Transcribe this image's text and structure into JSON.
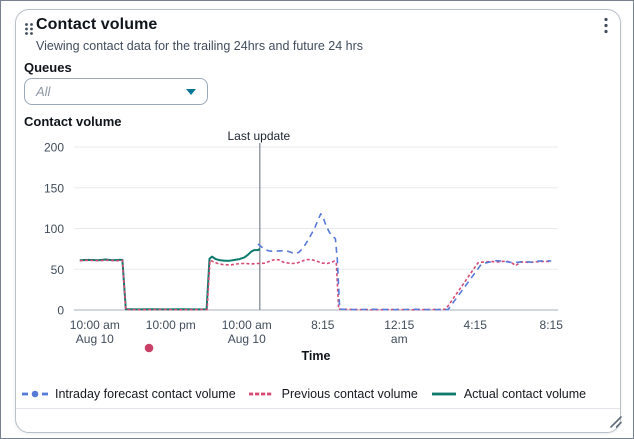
{
  "header": {
    "title": "Contact volume",
    "subtitle": "Viewing contact data for the trailing 24hrs and future 24 hrs"
  },
  "icons": {
    "drag_handle": "drag-handle",
    "menu": "kebab-vertical-dots",
    "select_caret": "caret-down-filled",
    "resize": "resize-diagonal-handle"
  },
  "queues": {
    "label": "Queues",
    "selected": "All"
  },
  "colors": {
    "forecast_blue": "#587ad8",
    "previous_pink": "#d64a74",
    "actual_teal": "#0d7a6d",
    "annotation_dot": "#c94067",
    "select_caret": "#0b7596"
  },
  "chart_data": {
    "type": "line",
    "title": "Contact volume",
    "xlabel": "Time",
    "ylabel": "",
    "ylim": [
      0,
      200
    ],
    "grid": "horizontal",
    "legend_position": "bottom",
    "y_ticks": [
      0,
      50,
      100,
      150,
      200
    ],
    "x_ticks": [
      {
        "pos": 4.3,
        "line1": "10:00 am",
        "line2": "Aug 10"
      },
      {
        "pos": 20.0,
        "line1": "10:00 pm",
        "line2": ""
      },
      {
        "pos": 35.7,
        "line1": "10:00 am",
        "line2": "Aug 10"
      },
      {
        "pos": 51.4,
        "line1": "8:15",
        "line2": ""
      },
      {
        "pos": 67.2,
        "line1": "12:15",
        "line2": "am"
      },
      {
        "pos": 82.9,
        "line1": "4:15",
        "line2": ""
      },
      {
        "pos": 98.6,
        "line1": "8:15",
        "line2": ""
      }
    ],
    "annotations": {
      "vline": {
        "label": "Last update",
        "pos": 38.4
      },
      "below_axis_dot": {
        "pos": 15.5,
        "color": "#c94067"
      }
    },
    "series": [
      {
        "name": "Intraday forecast contact volume",
        "color": "#587ad8",
        "style": "dashed",
        "points": [
          [
            38.0,
            81
          ],
          [
            38.7,
            77.5
          ],
          [
            39.5,
            74
          ],
          [
            40.3,
            72.5
          ],
          [
            41.3,
            72
          ],
          [
            42.5,
            72.5
          ],
          [
            43.7,
            73
          ],
          [
            44.7,
            71
          ],
          [
            45.7,
            69
          ],
          [
            46.5,
            71
          ],
          [
            47.3,
            76
          ],
          [
            48.3,
            85
          ],
          [
            49.1,
            93.5
          ],
          [
            49.9,
            103
          ],
          [
            50.6,
            113
          ],
          [
            51.0,
            118
          ],
          [
            51.5,
            113
          ],
          [
            52.1,
            103
          ],
          [
            52.8,
            95
          ],
          [
            53.5,
            90
          ],
          [
            54.0,
            87.5
          ],
          [
            54.4,
            62
          ],
          [
            54.9,
            1
          ],
          [
            58,
            0.5
          ],
          [
            62,
            0.8
          ],
          [
            66,
            0.4
          ],
          [
            70,
            0.8
          ],
          [
            74,
            0.4
          ],
          [
            77.3,
            0.6
          ],
          [
            84.2,
            56.5
          ],
          [
            85.6,
            58.5
          ],
          [
            87.1,
            60.5
          ],
          [
            88.6,
            60
          ],
          [
            90.1,
            58.5
          ],
          [
            91.6,
            58.5
          ],
          [
            93.1,
            59.5
          ],
          [
            94.6,
            58.5
          ],
          [
            96.1,
            60
          ],
          [
            97.6,
            60.5
          ],
          [
            98.6,
            60
          ]
        ]
      },
      {
        "name": "Previous contact volume",
        "color": "#d64a74",
        "style": "dense-dashed",
        "points": [
          [
            1.2,
            60.5
          ],
          [
            3,
            61
          ],
          [
            5,
            60.5
          ],
          [
            7,
            61
          ],
          [
            9,
            60.5
          ],
          [
            10.0,
            61
          ],
          [
            10.7,
            0.5
          ],
          [
            14,
            0.3
          ],
          [
            18,
            0.6
          ],
          [
            22,
            0.3
          ],
          [
            26,
            0.6
          ],
          [
            27.5,
            0.5
          ],
          [
            28.1,
            61
          ],
          [
            28.9,
            59
          ],
          [
            29.7,
            57
          ],
          [
            30.6,
            56
          ],
          [
            31.6,
            55.5
          ],
          [
            32.6,
            55.5
          ],
          [
            33.6,
            56.5
          ],
          [
            34.6,
            57
          ],
          [
            35.6,
            57
          ],
          [
            36.6,
            56.5
          ],
          [
            37.6,
            57
          ],
          [
            38.4,
            57
          ],
          [
            39.6,
            57.5
          ],
          [
            40.6,
            60.5
          ],
          [
            41.6,
            62
          ],
          [
            42.4,
            61.5
          ],
          [
            43.3,
            58.5
          ],
          [
            44.3,
            57.5
          ],
          [
            45.3,
            57
          ],
          [
            46.3,
            58
          ],
          [
            47.3,
            60.5
          ],
          [
            48.3,
            62
          ],
          [
            49.3,
            61.5
          ],
          [
            50.3,
            59.5
          ],
          [
            51.3,
            57.5
          ],
          [
            52.3,
            57
          ],
          [
            53.2,
            58.5
          ],
          [
            53.8,
            60
          ],
          [
            54.2,
            58
          ],
          [
            54.7,
            1
          ],
          [
            58,
            0.6
          ],
          [
            62,
            0.3
          ],
          [
            66,
            0.6
          ],
          [
            70,
            0.3
          ],
          [
            74,
            0.6
          ],
          [
            76.8,
            0.8
          ],
          [
            83.5,
            58
          ],
          [
            84.8,
            59
          ],
          [
            86.3,
            59.5
          ],
          [
            87.8,
            59
          ],
          [
            89.3,
            60
          ],
          [
            90.4,
            58
          ],
          [
            91.3,
            54.5
          ],
          [
            92.3,
            59
          ],
          [
            93.8,
            58.5
          ],
          [
            95.3,
            59
          ],
          [
            96.8,
            59.5
          ],
          [
            98.2,
            59.5
          ],
          [
            98.6,
            60
          ]
        ]
      },
      {
        "name": "Actual contact volume",
        "color": "#0d7a6d",
        "style": "solid",
        "points": [
          [
            1.2,
            61
          ],
          [
            3,
            61.5
          ],
          [
            5,
            61
          ],
          [
            6.5,
            62
          ],
          [
            8,
            61
          ],
          [
            9.3,
            61.5
          ],
          [
            10.0,
            61.5
          ],
          [
            10.7,
            1
          ],
          [
            13,
            0.7
          ],
          [
            16,
            1
          ],
          [
            19,
            0.7
          ],
          [
            22,
            1
          ],
          [
            25,
            0.7
          ],
          [
            27.4,
            1
          ],
          [
            28.0,
            63
          ],
          [
            28.5,
            65.5
          ],
          [
            29.3,
            62.5
          ],
          [
            30.2,
            61
          ],
          [
            31.2,
            60.5
          ],
          [
            32.2,
            60.5
          ],
          [
            33.2,
            61.5
          ],
          [
            34.2,
            62.5
          ],
          [
            35.2,
            64.5
          ],
          [
            36.0,
            68
          ],
          [
            36.6,
            71.5
          ],
          [
            37.2,
            73.5
          ],
          [
            38.0,
            73.5
          ],
          [
            38.4,
            75
          ]
        ]
      }
    ]
  }
}
